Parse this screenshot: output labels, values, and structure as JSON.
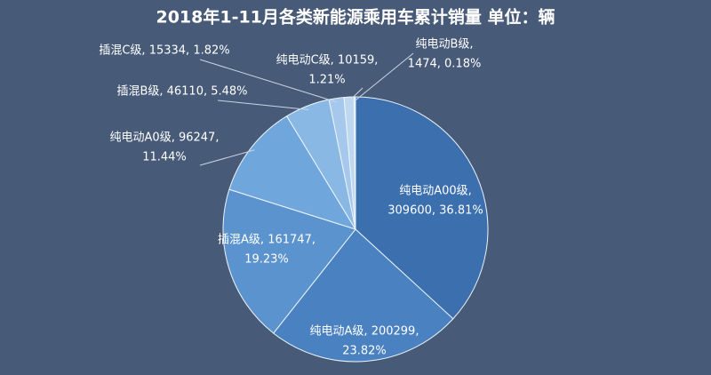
{
  "chart_data": {
    "type": "pie",
    "title": "2018年1-11月各类新能源乘用车累计销量 单位：辆",
    "values": [
      309600,
      200299,
      161747,
      96247,
      46110,
      15334,
      10159,
      1474
    ],
    "percents": [
      36.81,
      23.82,
      19.23,
      11.44,
      5.48,
      1.82,
      1.21,
      0.18
    ],
    "value_labels": [
      [
        "纯电动A00级,",
        "309600, 36.81%"
      ],
      [
        "纯电动A级, 200299,",
        "23.82%"
      ],
      [
        "插混A级, 161747,",
        "19.23%"
      ],
      [
        "纯电动A0级, 96247,",
        "11.44%"
      ],
      [
        "插混B级, 46110, 5.48%"
      ],
      [
        "插混C级, 15334, 1.82%"
      ],
      [
        "纯电动C级, 10159,",
        "1.21%"
      ],
      [
        "纯电动B级,",
        "1474, 0.18%"
      ]
    ],
    "colors": [
      "#3b6fae",
      "#4a81c1",
      "#5b93cf",
      "#6fa6dc",
      "#8ab8e5",
      "#a6c8ec",
      "#bfd8f1",
      "#dbe9f7"
    ]
  }
}
